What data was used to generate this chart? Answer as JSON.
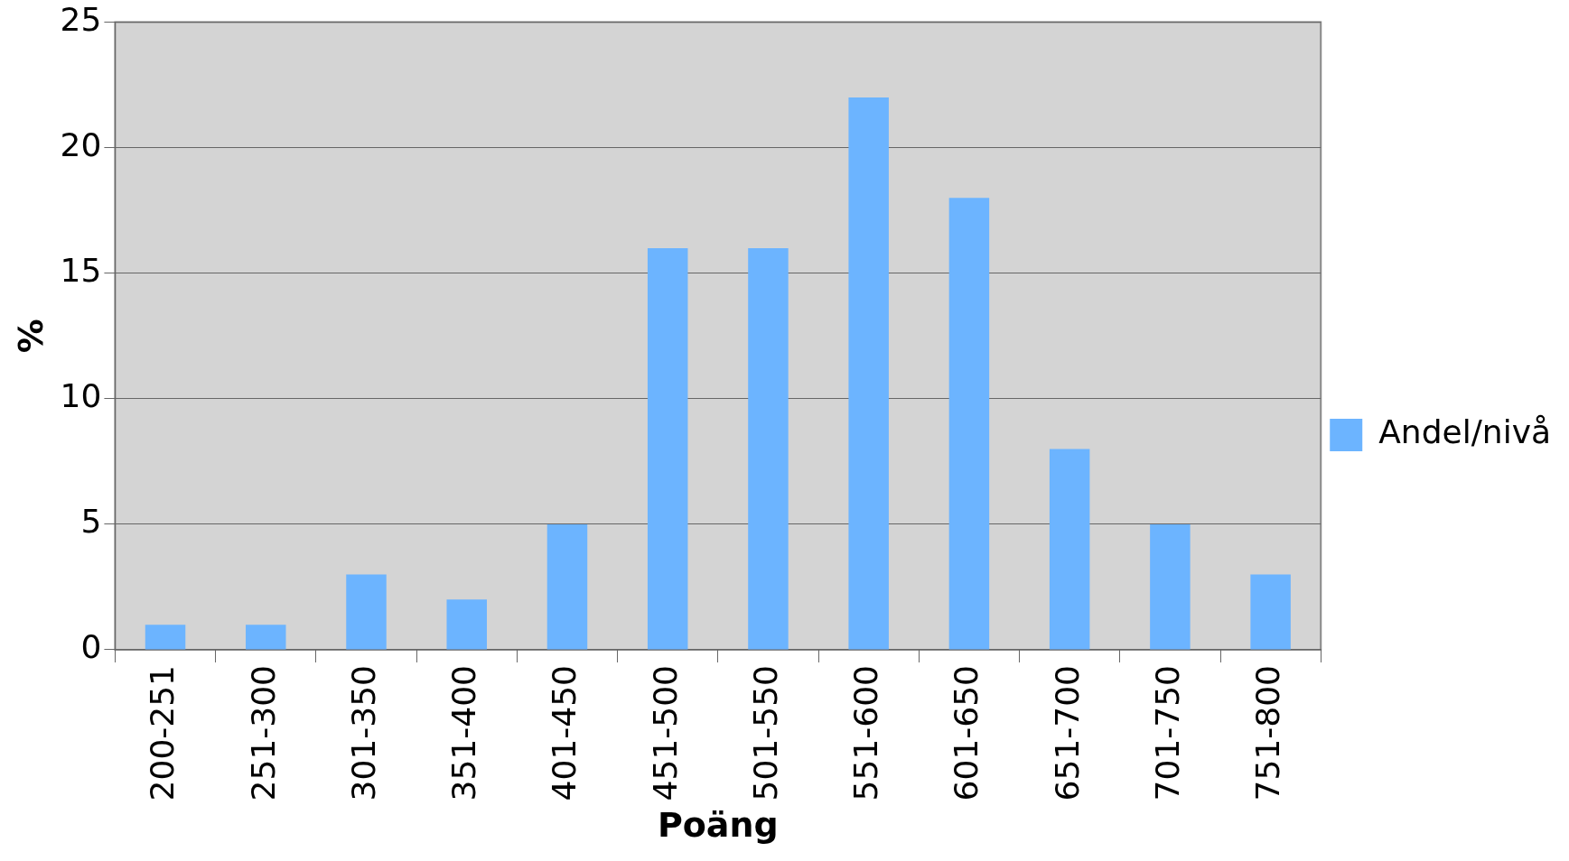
{
  "chart_data": {
    "type": "bar",
    "xlabel": "Poäng",
    "ylabel": "%",
    "categories": [
      "200-251",
      "251-300",
      "301-350",
      "351-400",
      "401-450",
      "451-500",
      "501-550",
      "551-600",
      "601-650",
      "651-700",
      "701-750",
      "751-800"
    ],
    "series": [
      {
        "name": "Andel/nivå",
        "color": "#6cb4ff",
        "values": [
          1,
          1,
          3,
          2,
          5,
          16,
          16,
          22,
          18,
          8,
          5,
          3
        ]
      }
    ],
    "ylim": [
      0,
      25
    ],
    "yticks": [
      0,
      5,
      10,
      15,
      20,
      25
    ],
    "grid": "y",
    "legend": "right"
  }
}
